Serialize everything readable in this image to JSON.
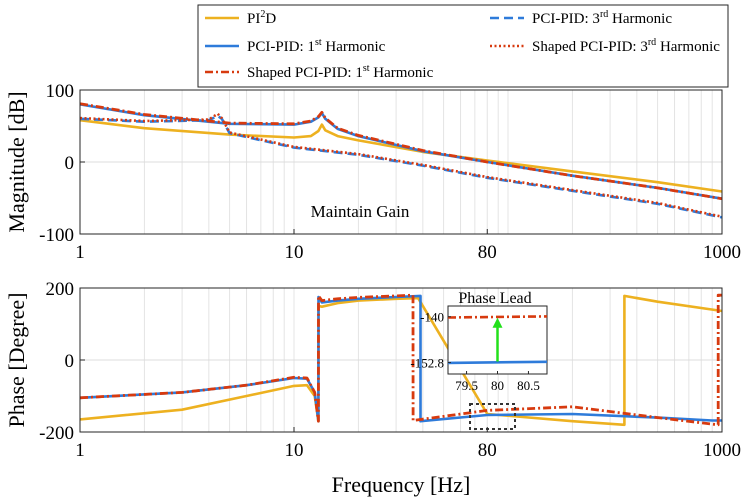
{
  "chart_data": [
    {
      "type": "line",
      "title": "",
      "xlabel": "",
      "ylabel": "Magnitude [dB]",
      "xscale": "log",
      "xlim": [
        1,
        1000
      ],
      "ylim": [
        -100,
        100
      ],
      "xticks": [
        1,
        10,
        80,
        1000
      ],
      "xtick_labels": [
        "1",
        "10",
        "80",
        "1000"
      ],
      "yticks": [
        100,
        0,
        -100
      ],
      "ytick_labels": [
        "100",
        "0",
        "-100"
      ],
      "grid": true,
      "annotation": "Maintain Gain",
      "series": [
        {
          "name": "PI2D",
          "color": "#EDB120",
          "style": "solid",
          "x": [
            1,
            2,
            5,
            10,
            12,
            13,
            13.5,
            14,
            16,
            20,
            40,
            80,
            200,
            500,
            1000
          ],
          "y": [
            58,
            47,
            38,
            34,
            36,
            43,
            52,
            44,
            36,
            30,
            14,
            2,
            -13,
            -28,
            -41
          ]
        },
        {
          "name": "PCI-PID: 1st Harmonic",
          "color": "#2E7BDA",
          "style": "solid",
          "x": [
            1,
            2,
            5,
            10,
            12,
            13,
            13.5,
            14,
            16,
            20,
            40,
            80,
            200,
            500,
            1000
          ],
          "y": [
            80,
            65,
            53,
            52,
            56,
            62,
            68,
            60,
            46,
            36,
            15,
            0,
            -19,
            -36,
            -51
          ]
        },
        {
          "name": "PCI-PID: 3rd Harmonic",
          "color": "#2E7BDA",
          "style": "dashed",
          "x": [
            1,
            2,
            4,
            4.4,
            4.6,
            5,
            10,
            20,
            40,
            80,
            200,
            500,
            1000
          ],
          "y": [
            60,
            56,
            58,
            64,
            60,
            40,
            20,
            10,
            -5,
            -22,
            -40,
            -58,
            -77
          ]
        },
        {
          "name": "Shaped PCI-PID: 1st Harmonic",
          "color": "#D73A0F",
          "style": "dashdot",
          "x": [
            1,
            2,
            5,
            10,
            12,
            13,
            13.5,
            14,
            16,
            20,
            40,
            80,
            200,
            500,
            1000
          ],
          "y": [
            81,
            66,
            54,
            53,
            57,
            63,
            69,
            61,
            47,
            37,
            16,
            0,
            -19,
            -36,
            -51
          ]
        },
        {
          "name": "Shaped PCI-PID: 3rd Harmonic",
          "color": "#D73A0F",
          "style": "dotted",
          "x": [
            1,
            2,
            4,
            4.4,
            4.6,
            5,
            10,
            20,
            40,
            80,
            200,
            500,
            1000
          ],
          "y": [
            61,
            57,
            59,
            67,
            61,
            41,
            21,
            11,
            -4,
            -21,
            -39,
            -57,
            -76
          ]
        }
      ]
    },
    {
      "type": "line",
      "title": "",
      "xlabel": "Frequency [Hz]",
      "ylabel": "Phase [Degree]",
      "xscale": "log",
      "xlim": [
        1,
        1000
      ],
      "ylim": [
        -200,
        200
      ],
      "xticks": [
        1,
        10,
        80,
        1000
      ],
      "xtick_labels": [
        "1",
        "10",
        "80",
        "1000"
      ],
      "yticks": [
        200,
        0,
        -200
      ],
      "ytick_labels": [
        "200",
        "0",
        "-200"
      ],
      "grid": true,
      "series": [
        {
          "name": "PI2D",
          "color": "#EDB120",
          "style": "solid",
          "x": [
            1,
            3,
            6,
            10,
            11.5,
            12.5,
            13,
            13.01,
            13.5,
            16,
            20,
            30,
            38,
            80,
            200,
            350,
            350.01,
            500,
            1000
          ],
          "y": [
            -165,
            -138,
            -100,
            -72,
            -70,
            -100,
            -170,
            150,
            148,
            158,
            165,
            170,
            172,
            -150,
            -170,
            -180,
            178,
            162,
            136
          ]
        },
        {
          "name": "PCI-PID: 1st Harmonic",
          "color": "#2E7BDA",
          "style": "solid",
          "x": [
            1,
            3,
            6,
            10,
            11.5,
            12.5,
            13,
            13.01,
            13.5,
            16,
            20,
            30,
            39,
            39.01,
            80,
            200,
            500,
            900,
            1000
          ],
          "y": [
            -105,
            -90,
            -70,
            -50,
            -52,
            -90,
            -170,
            175,
            160,
            165,
            170,
            175,
            178,
            -170,
            -152.8,
            -150,
            -160,
            -168,
            -168
          ]
        },
        {
          "name": "Shaped PCI-PID: 1st Harmonic",
          "color": "#D73A0F",
          "style": "dashdot",
          "x": [
            1,
            3,
            6,
            10,
            11.5,
            12.5,
            13,
            13.01,
            13.5,
            16,
            20,
            30,
            36,
            36.01,
            80,
            200,
            500,
            900,
            960,
            960.01,
            1000
          ],
          "y": [
            -105,
            -90,
            -70,
            -48,
            -50,
            -90,
            -170,
            178,
            165,
            170,
            174,
            178,
            180,
            -168,
            -140,
            -130,
            -160,
            -178,
            -180,
            180,
            180
          ]
        }
      ]
    },
    {
      "type": "line",
      "title": "Phase Lead",
      "inset": true,
      "xlim": [
        79.2,
        80.8
      ],
      "ylim": [
        -156,
        -137
      ],
      "xticks": [
        79.5,
        80,
        80.5
      ],
      "xtick_labels": [
        "79.5",
        "80",
        "80.5"
      ],
      "yticks": [
        -140,
        -152.8
      ],
      "ytick_labels": [
        "-140",
        "-152.8"
      ],
      "series": [
        {
          "name": "PCI-PID: 1st Harmonic",
          "color": "#2E7BDA",
          "style": "solid",
          "x": [
            79.2,
            80.8
          ],
          "y": [
            -152.9,
            -152.6
          ]
        },
        {
          "name": "Shaped PCI-PID: 1st Harmonic",
          "color": "#D73A0F",
          "style": "dashdot",
          "x": [
            79.2,
            80.8
          ],
          "y": [
            -140.2,
            -139.9
          ]
        }
      ],
      "arrow": {
        "x": 80,
        "from": -152.8,
        "to": -140,
        "color": "#22E01B"
      }
    }
  ],
  "legend": {
    "position": "top",
    "entries": [
      {
        "label": "PI",
        "sup": "2",
        "rest": "D",
        "color": "#EDB120",
        "style": "solid"
      },
      {
        "label": "PCI-PID: 3",
        "sup": "rd",
        "rest": " Harmonic",
        "color": "#2E7BDA",
        "style": "dashed"
      },
      {
        "label": "PCI-PID: 1",
        "sup": "st",
        "rest": " Harmonic",
        "color": "#2E7BDA",
        "style": "solid"
      },
      {
        "label": "Shaped PCI-PID: 3",
        "sup": "rd",
        "rest": " Harmonic",
        "color": "#D73A0F",
        "style": "dotted"
      },
      {
        "label": "Shaped PCI-PID: 1",
        "sup": "st",
        "rest": " Harmonic",
        "color": "#D73A0F",
        "style": "dashdot"
      }
    ]
  }
}
